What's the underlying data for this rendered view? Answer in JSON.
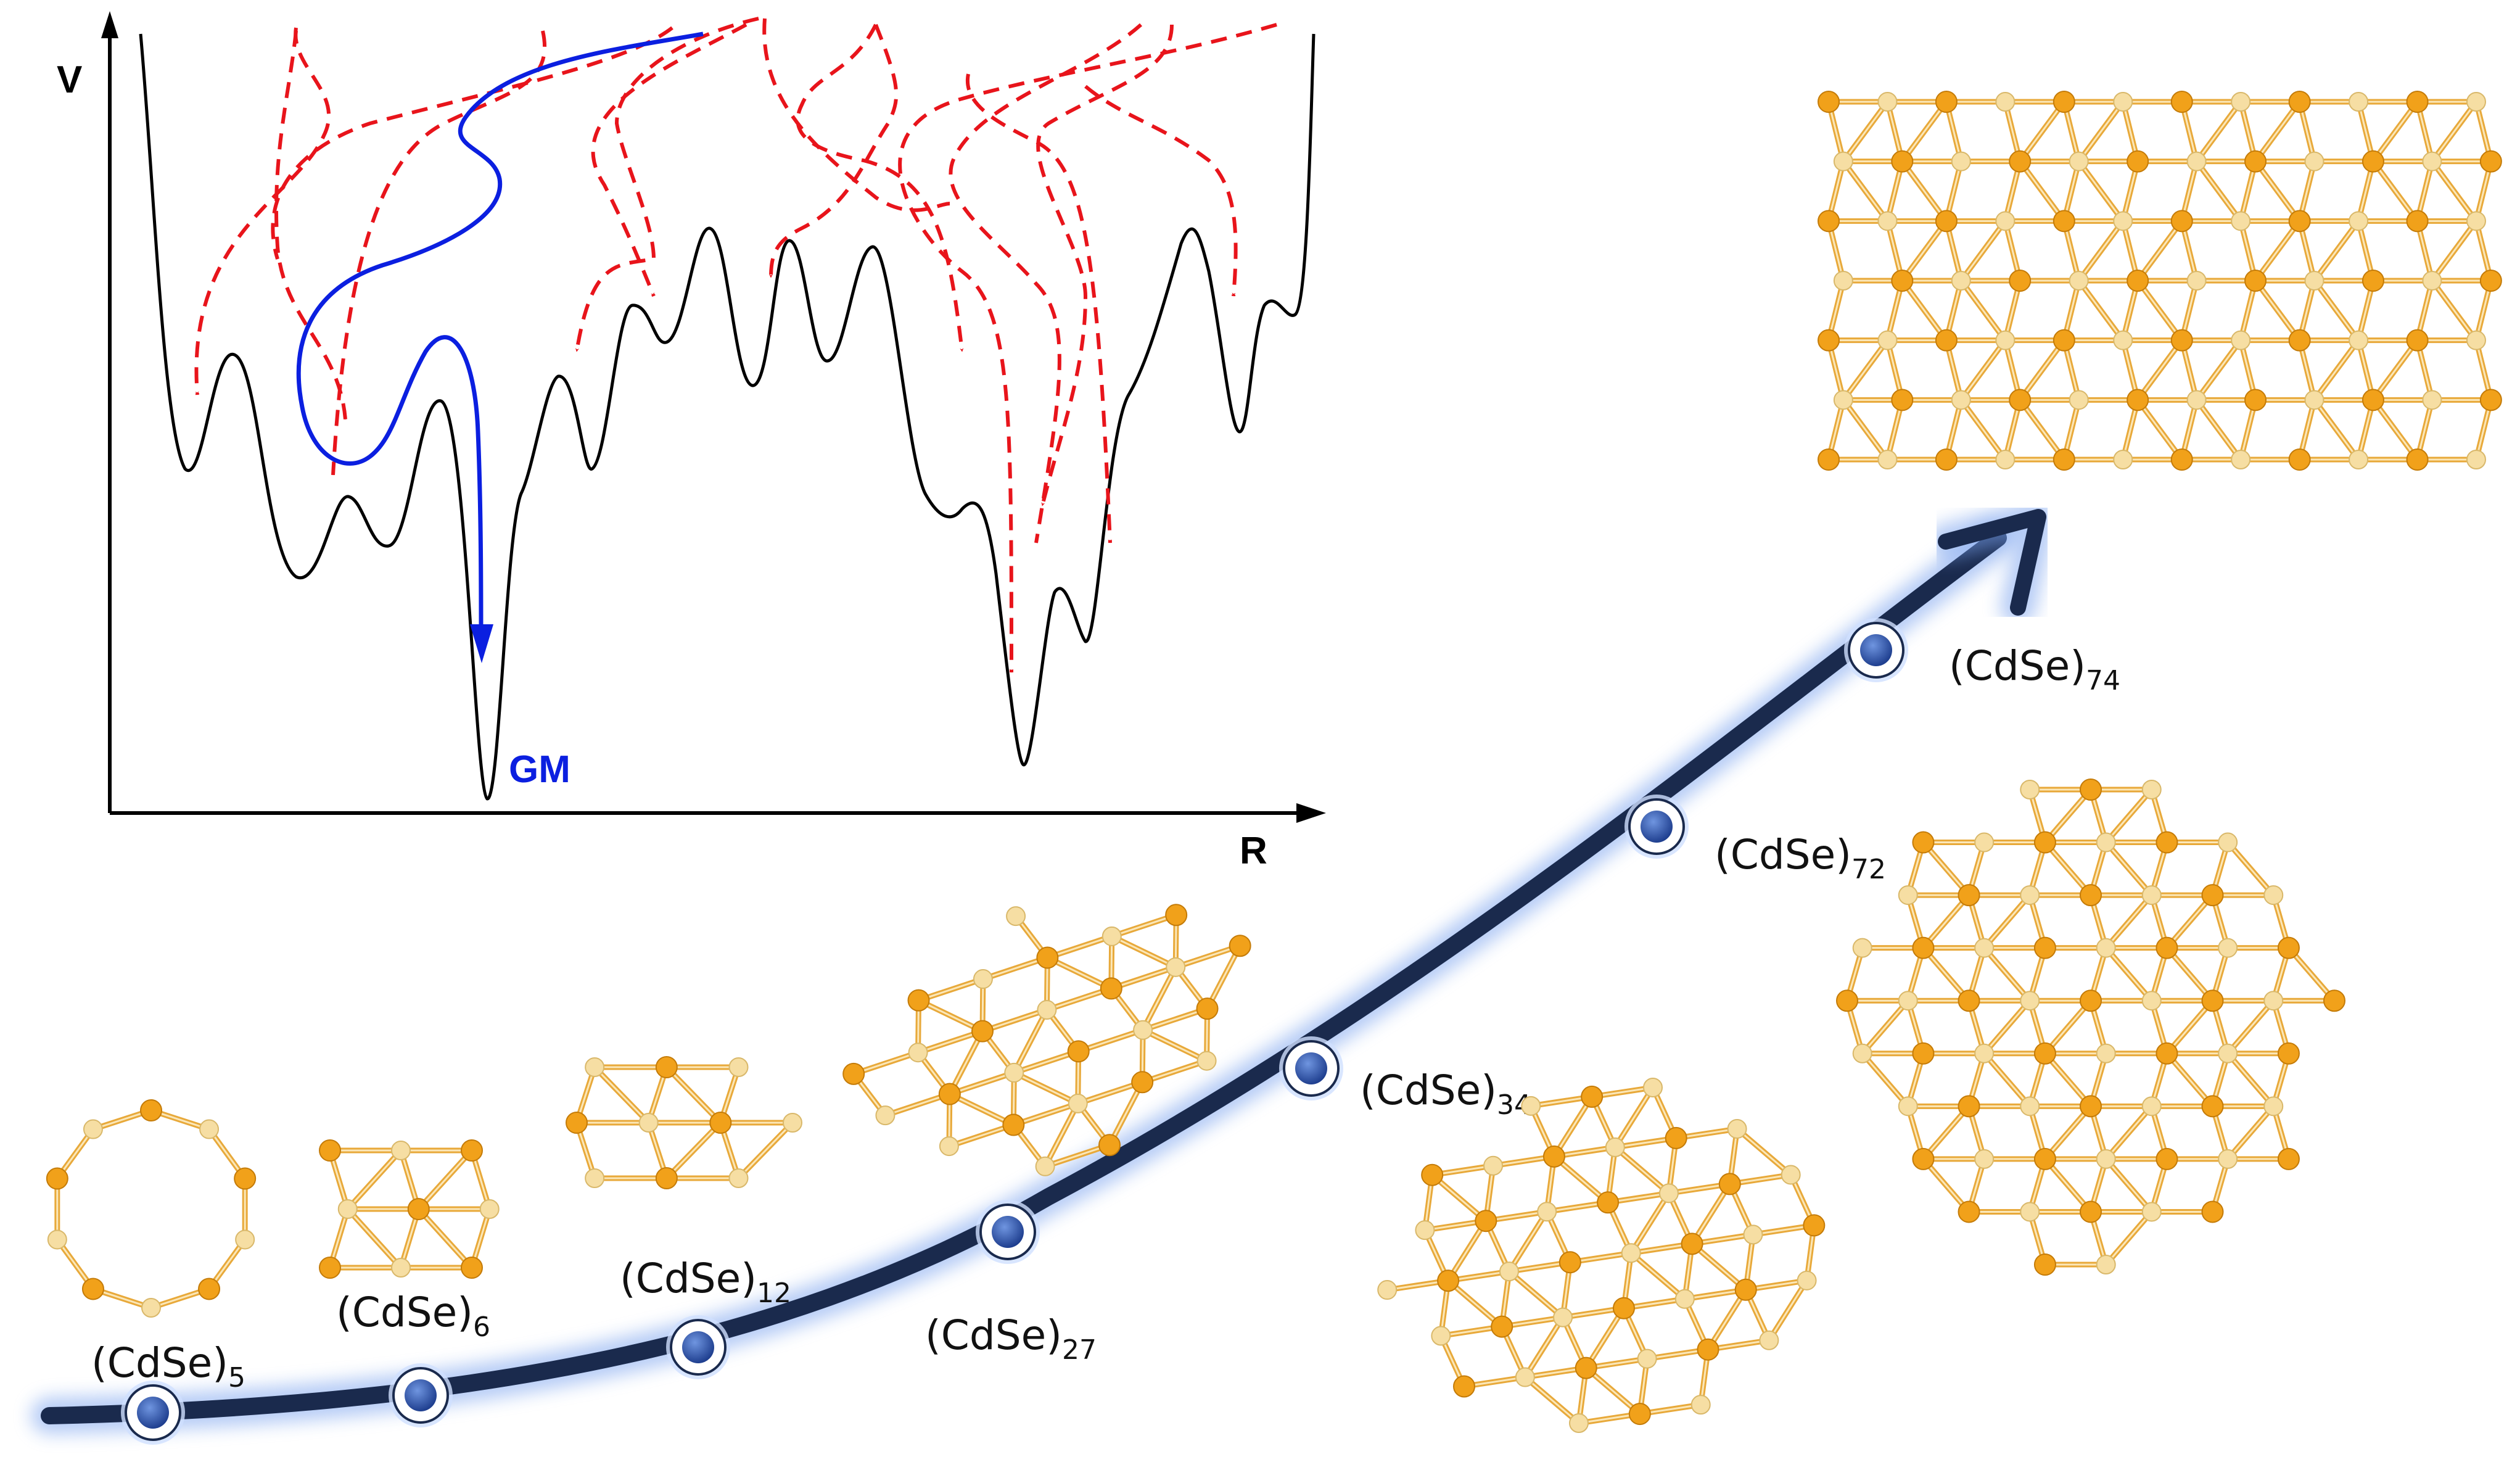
{
  "colors": {
    "potential_curve": "#000000",
    "red_paths": "#e8141b",
    "blue_path": "#0b1fe0",
    "progress_curve": "#1a2a4d",
    "glow": "#7aa3ee",
    "node_fill": "#2f5cb8",
    "cd_atom": "#f1a11a",
    "se_atom": "#f6dea3",
    "bond": "#e8a93a"
  },
  "energy_landscape": {
    "y_axis_label": "V",
    "x_axis_label": "R",
    "global_minimum_label": "GM"
  },
  "clusters": [
    {
      "name": "(CdSe)",
      "subscript": "5"
    },
    {
      "name": "(CdSe)",
      "subscript": "6"
    },
    {
      "name": "(CdSe)",
      "subscript": "12"
    },
    {
      "name": "(CdSe)",
      "subscript": "27"
    },
    {
      "name": "(CdSe)",
      "subscript": "34"
    },
    {
      "name": "(CdSe)",
      "subscript": "72"
    },
    {
      "name": "(CdSe)",
      "subscript": "74"
    }
  ]
}
